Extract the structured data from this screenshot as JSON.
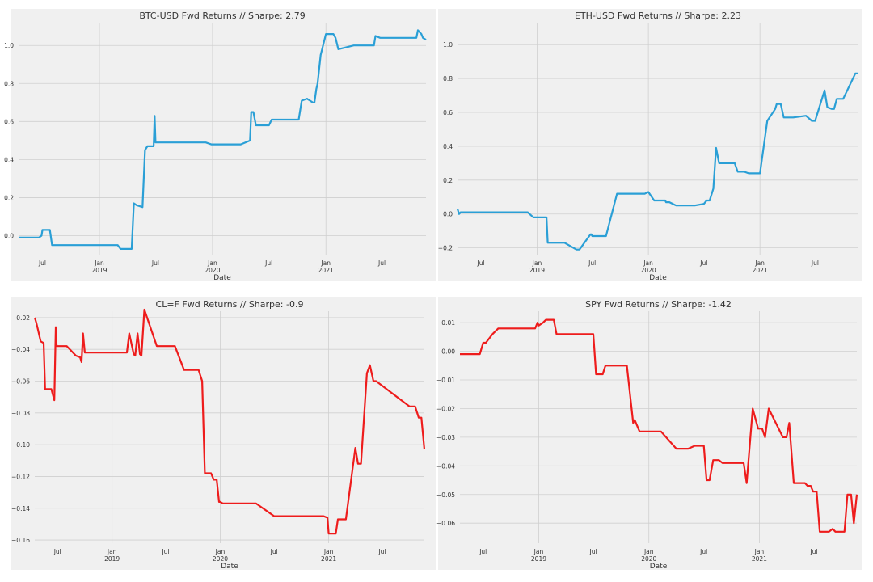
{
  "chart_data": [
    {
      "type": "line",
      "title": "BTC-USD Fwd Returns //  Sharpe: 2.79",
      "xlabel": "Date",
      "ylabel": "",
      "color": "#2a9fd6",
      "xlim": [
        "2018-04-15",
        "2021-11-20"
      ],
      "ylim": [
        -0.1,
        1.12
      ],
      "yticks": [
        "0.0",
        "0.2",
        "0.4",
        "0.6",
        "0.8",
        "1.0"
      ],
      "ytick_values": [
        0.0,
        0.2,
        0.4,
        0.6,
        0.8,
        1.0
      ],
      "xticks": [
        {
          "date": "2018-07-01",
          "label": "Jul",
          "year": ""
        },
        {
          "date": "2019-01-01",
          "label": "Jan",
          "year": "2019"
        },
        {
          "date": "2019-07-01",
          "label": "Jul",
          "year": ""
        },
        {
          "date": "2020-01-01",
          "label": "Jan",
          "year": "2020"
        },
        {
          "date": "2020-07-01",
          "label": "Jul",
          "year": ""
        },
        {
          "date": "2021-01-01",
          "label": "Jan",
          "year": "2021"
        },
        {
          "date": "2021-07-01",
          "label": "Jul",
          "year": ""
        }
      ],
      "x": [
        "2018-04-15",
        "2018-05-20",
        "2018-06-01",
        "2018-06-10",
        "2018-06-20",
        "2018-06-28",
        "2018-07-01",
        "2018-07-15",
        "2018-07-25",
        "2018-08-01",
        "2018-08-05",
        "2018-12-01",
        "2019-03-01",
        "2019-03-10",
        "2019-04-15",
        "2019-04-22",
        "2019-05-01",
        "2019-05-20",
        "2019-05-28",
        "2019-06-05",
        "2019-06-10",
        "2019-06-25",
        "2019-06-28",
        "2019-07-01",
        "2019-07-10",
        "2019-10-01",
        "2019-12-10",
        "2019-12-28",
        "2020-01-01",
        "2020-01-10",
        "2020-04-01",
        "2020-05-01",
        "2020-05-05",
        "2020-05-10",
        "2020-05-12",
        "2020-05-20",
        "2020-06-01",
        "2020-07-01",
        "2020-07-10",
        "2020-10-01",
        "2020-10-05",
        "2020-10-15",
        "2020-11-01",
        "2020-11-20",
        "2020-11-25",
        "2020-12-01",
        "2020-12-05",
        "2020-12-15",
        "2021-01-01",
        "2021-01-25",
        "2021-02-01",
        "2021-02-10",
        "2021-04-01",
        "2021-06-01",
        "2021-06-05",
        "2021-06-10",
        "2021-06-25",
        "2021-07-01",
        "2021-07-10",
        "2021-08-01",
        "2021-10-15",
        "2021-10-20",
        "2021-10-25",
        "2021-11-05",
        "2021-11-10",
        "2021-11-20"
      ],
      "y": [
        -0.01,
        -0.01,
        -0.01,
        -0.01,
        -0.01,
        0.0,
        0.03,
        0.03,
        0.03,
        -0.05,
        -0.05,
        -0.05,
        -0.05,
        -0.07,
        -0.07,
        0.17,
        0.16,
        0.15,
        0.45,
        0.47,
        0.47,
        0.47,
        0.63,
        0.49,
        0.49,
        0.49,
        0.49,
        0.48,
        0.48,
        0.48,
        0.48,
        0.5,
        0.65,
        0.65,
        0.65,
        0.58,
        0.58,
        0.58,
        0.61,
        0.61,
        0.61,
        0.71,
        0.72,
        0.7,
        0.7,
        0.77,
        0.8,
        0.95,
        1.06,
        1.06,
        1.04,
        0.98,
        1.0,
        1.0,
        1.0,
        1.05,
        1.04,
        1.04,
        1.04,
        1.04,
        1.04,
        1.04,
        1.08,
        1.06,
        1.04,
        1.03
      ]
    },
    {
      "type": "line",
      "title": "ETH-USD Fwd Returns //  Sharpe: 2.23",
      "xlabel": "Date",
      "ylabel": "",
      "color": "#2a9fd6",
      "xlim": [
        "2018-04-15",
        "2021-11-20"
      ],
      "ylim": [
        -0.24,
        1.13
      ],
      "yticks": [
        "−0.2",
        "0.0",
        "0.2",
        "0.4",
        "0.6",
        "0.8",
        "1.0"
      ],
      "ytick_values": [
        -0.2,
        0.0,
        0.2,
        0.4,
        0.6,
        0.8,
        1.0
      ],
      "xticks": [
        {
          "date": "2018-07-01",
          "label": "Jul",
          "year": ""
        },
        {
          "date": "2019-01-01",
          "label": "Jan",
          "year": "2019"
        },
        {
          "date": "2019-07-01",
          "label": "Jul",
          "year": ""
        },
        {
          "date": "2020-01-01",
          "label": "Jan",
          "year": "2020"
        },
        {
          "date": "2020-07-01",
          "label": "Jul",
          "year": ""
        },
        {
          "date": "2021-01-01",
          "label": "Jan",
          "year": "2021"
        },
        {
          "date": "2021-07-01",
          "label": "Jul",
          "year": ""
        }
      ],
      "x": [
        "2018-04-15",
        "2018-04-20",
        "2018-04-25",
        "2018-11-25",
        "2018-12-01",
        "2018-12-20",
        "2018-12-28",
        "2019-02-01",
        "2019-02-05",
        "2019-03-10",
        "2019-03-20",
        "2019-04-01",
        "2019-05-10",
        "2019-05-20",
        "2019-06-25",
        "2019-06-28",
        "2019-07-01",
        "2019-08-15",
        "2019-09-20",
        "2019-10-01",
        "2019-12-20",
        "2020-01-01",
        "2020-01-20",
        "2020-02-10",
        "2020-02-15",
        "2020-02-25",
        "2020-02-28",
        "2020-03-10",
        "2020-04-01",
        "2020-04-15",
        "2020-04-22",
        "2020-05-10",
        "2020-06-01",
        "2020-07-01",
        "2020-07-10",
        "2020-07-20",
        "2020-08-01",
        "2020-08-10",
        "2020-08-20",
        "2020-09-25",
        "2020-10-01",
        "2020-10-10",
        "2020-10-20",
        "2020-11-10",
        "2020-11-25",
        "2020-12-10",
        "2021-01-01",
        "2021-01-25",
        "2021-02-20",
        "2021-02-25",
        "2021-03-01",
        "2021-03-10",
        "2021-03-20",
        "2021-04-01",
        "2021-04-20",
        "2021-06-01",
        "2021-06-20",
        "2021-07-01",
        "2021-08-01",
        "2021-08-10",
        "2021-08-25",
        "2021-09-01",
        "2021-09-10",
        "2021-10-01",
        "2021-11-10",
        "2021-11-20"
      ],
      "y": [
        0.03,
        0.0,
        0.01,
        0.01,
        0.01,
        -0.02,
        -0.02,
        -0.02,
        -0.17,
        -0.17,
        -0.17,
        -0.17,
        -0.21,
        -0.21,
        -0.12,
        -0.12,
        -0.13,
        -0.13,
        0.12,
        0.12,
        0.12,
        0.13,
        0.08,
        0.08,
        0.08,
        0.08,
        0.07,
        0.07,
        0.05,
        0.05,
        0.05,
        0.05,
        0.05,
        0.06,
        0.08,
        0.08,
        0.15,
        0.39,
        0.3,
        0.3,
        0.3,
        0.3,
        0.25,
        0.25,
        0.24,
        0.24,
        0.24,
        0.55,
        0.62,
        0.65,
        0.65,
        0.65,
        0.57,
        0.57,
        0.57,
        0.58,
        0.55,
        0.55,
        0.73,
        0.63,
        0.62,
        0.62,
        0.68,
        0.68,
        0.83,
        0.83
      ]
    },
    {
      "type": "line",
      "title": "CL=F Fwd Returns //  Sharpe: -0.9",
      "xlabel": "Date",
      "ylabel": "",
      "color": "#ee1c1c",
      "xlim": [
        "2018-04-15",
        "2021-11-20"
      ],
      "ylim": [
        -0.162,
        -0.016
      ],
      "yticks": [
        "−0.16",
        "−0.14",
        "−0.12",
        "−0.10",
        "−0.08",
        "−0.06",
        "−0.04",
        "−0.02"
      ],
      "ytick_values": [
        -0.16,
        -0.14,
        -0.12,
        -0.1,
        -0.08,
        -0.06,
        -0.04,
        -0.02
      ],
      "xticks": [
        {
          "date": "2018-07-01",
          "label": "Jul",
          "year": ""
        },
        {
          "date": "2019-01-01",
          "label": "Jan",
          "year": "2019"
        },
        {
          "date": "2019-07-01",
          "label": "Jul",
          "year": ""
        },
        {
          "date": "2020-01-01",
          "label": "Jan",
          "year": "2020"
        },
        {
          "date": "2020-07-01",
          "label": "Jul",
          "year": ""
        },
        {
          "date": "2021-01-01",
          "label": "Jan",
          "year": "2021"
        },
        {
          "date": "2021-07-01",
          "label": "Jul",
          "year": ""
        }
      ],
      "x": [
        "2018-04-15",
        "2018-04-20",
        "2018-04-25",
        "2018-05-05",
        "2018-05-15",
        "2018-05-20",
        "2018-06-01",
        "2018-06-10",
        "2018-06-20",
        "2018-06-25",
        "2018-06-28",
        "2018-07-01",
        "2018-07-10",
        "2018-08-01",
        "2018-09-01",
        "2018-09-15",
        "2018-09-20",
        "2018-09-25",
        "2018-10-01",
        "2019-01-01",
        "2019-02-15",
        "2019-02-20",
        "2019-02-28",
        "2019-03-15",
        "2019-03-20",
        "2019-03-28",
        "2019-04-05",
        "2019-04-10",
        "2019-04-20",
        "2019-06-01",
        "2019-06-10",
        "2019-08-01",
        "2019-09-01",
        "2019-09-10",
        "2019-09-25",
        "2019-10-10",
        "2019-10-20",
        "2019-11-01",
        "2019-11-10",
        "2019-11-25",
        "2019-12-01",
        "2019-12-10",
        "2019-12-20",
        "2019-12-28",
        "2020-01-01",
        "2020-01-10",
        "2020-05-01",
        "2020-07-01",
        "2020-08-01",
        "2020-08-10",
        "2020-08-20",
        "2020-12-01",
        "2020-12-15",
        "2020-12-28",
        "2021-01-01",
        "2021-01-10",
        "2021-01-15",
        "2021-01-25",
        "2021-02-01",
        "2021-02-10",
        "2021-02-20",
        "2021-02-28",
        "2021-04-01",
        "2021-04-10",
        "2021-04-20",
        "2021-05-10",
        "2021-05-20",
        "2021-06-01",
        "2021-06-10",
        "2021-10-01",
        "2021-10-10",
        "2021-10-20",
        "2021-11-01",
        "2021-11-10",
        "2021-11-20"
      ],
      "y": [
        -0.02,
        -0.023,
        -0.027,
        -0.035,
        -0.036,
        -0.065,
        -0.065,
        -0.065,
        -0.072,
        -0.026,
        -0.038,
        -0.038,
        -0.038,
        -0.038,
        -0.044,
        -0.045,
        -0.048,
        -0.03,
        -0.042,
        -0.042,
        -0.042,
        -0.042,
        -0.03,
        -0.043,
        -0.044,
        -0.03,
        -0.043,
        -0.044,
        -0.015,
        -0.038,
        -0.038,
        -0.038,
        -0.053,
        -0.053,
        -0.053,
        -0.053,
        -0.053,
        -0.06,
        -0.118,
        -0.118,
        -0.118,
        -0.122,
        -0.122,
        -0.136,
        -0.136,
        -0.137,
        -0.137,
        -0.145,
        -0.145,
        -0.145,
        -0.145,
        -0.145,
        -0.145,
        -0.146,
        -0.156,
        -0.156,
        -0.156,
        -0.156,
        -0.147,
        -0.147,
        -0.147,
        -0.147,
        -0.102,
        -0.112,
        -0.112,
        -0.055,
        -0.05,
        -0.06,
        -0.06,
        -0.076,
        -0.076,
        -0.076,
        -0.083,
        -0.083,
        -0.103
      ]
    },
    {
      "type": "line",
      "title": "SPY Fwd Returns //  Sharpe: -1.42",
      "xlabel": "Date",
      "ylabel": "",
      "color": "#ee1c1c",
      "xlim": [
        "2018-04-15",
        "2021-11-20"
      ],
      "ylim": [
        -0.067,
        0.014
      ],
      "yticks": [
        "−0.06",
        "−0.05",
        "−0.04",
        "−0.03",
        "−0.02",
        "−0.01",
        "0.00",
        "0.01"
      ],
      "ytick_values": [
        -0.06,
        -0.05,
        -0.04,
        -0.03,
        -0.02,
        -0.01,
        0.0,
        0.01
      ],
      "xticks": [
        {
          "date": "2018-07-01",
          "label": "Jul",
          "year": ""
        },
        {
          "date": "2019-01-01",
          "label": "Jan",
          "year": "2019"
        },
        {
          "date": "2019-07-01",
          "label": "Jul",
          "year": ""
        },
        {
          "date": "2020-01-01",
          "label": "Jan",
          "year": "2020"
        },
        {
          "date": "2020-07-01",
          "label": "Jul",
          "year": ""
        },
        {
          "date": "2021-01-01",
          "label": "Jan",
          "year": "2021"
        },
        {
          "date": "2021-07-01",
          "label": "Jul",
          "year": ""
        }
      ],
      "x": [
        "2018-04-15",
        "2018-05-20",
        "2018-06-01",
        "2018-06-20",
        "2018-07-01",
        "2018-07-10",
        "2018-08-01",
        "2018-08-20",
        "2018-09-01",
        "2018-09-10",
        "2018-09-20",
        "2018-10-01",
        "2018-10-05",
        "2018-12-20",
        "2018-12-28",
        "2019-01-01",
        "2019-01-15",
        "2019-01-25",
        "2019-02-01",
        "2019-02-20",
        "2019-03-01",
        "2019-03-10",
        "2019-03-20",
        "2019-03-25",
        "2019-04-01",
        "2019-04-05",
        "2019-05-01",
        "2019-06-01",
        "2019-06-10",
        "2019-07-01",
        "2019-07-10",
        "2019-08-01",
        "2019-08-10",
        "2019-10-10",
        "2019-10-20",
        "2019-11-10",
        "2019-11-15",
        "2019-12-01",
        "2019-12-10",
        "2020-01-01",
        "2020-02-10",
        "2020-04-01",
        "2020-05-01",
        "2020-05-10",
        "2020-06-01",
        "2020-06-10",
        "2020-06-15",
        "2020-06-20",
        "2020-06-25",
        "2020-07-01",
        "2020-07-10",
        "2020-07-20",
        "2020-08-01",
        "2020-08-10",
        "2020-08-20",
        "2020-09-01",
        "2020-09-10",
        "2020-10-01",
        "2020-10-10",
        "2020-11-10",
        "2020-11-20",
        "2020-12-10",
        "2020-12-28",
        "2021-01-01",
        "2021-01-10",
        "2021-01-20",
        "2021-02-01",
        "2021-03-20",
        "2021-04-01",
        "2021-04-10",
        "2021-04-25",
        "2021-05-01",
        "2021-05-10",
        "2021-06-01",
        "2021-06-10",
        "2021-06-20",
        "2021-06-28",
        "2021-07-10",
        "2021-07-20",
        "2021-08-20",
        "2021-09-01",
        "2021-09-10",
        "2021-10-10",
        "2021-10-20",
        "2021-11-01",
        "2021-11-10",
        "2021-11-20"
      ],
      "y": [
        -0.001,
        -0.001,
        -0.001,
        -0.001,
        0.003,
        0.003,
        0.006,
        0.008,
        0.008,
        0.008,
        0.008,
        0.008,
        0.008,
        0.008,
        0.01,
        0.009,
        0.01,
        0.011,
        0.011,
        0.011,
        0.006,
        0.006,
        0.006,
        0.006,
        0.006,
        0.006,
        0.006,
        0.006,
        0.006,
        0.006,
        -0.008,
        -0.008,
        -0.005,
        -0.005,
        -0.005,
        -0.025,
        -0.024,
        -0.028,
        -0.028,
        -0.028,
        -0.028,
        -0.034,
        -0.034,
        -0.034,
        -0.033,
        -0.033,
        -0.033,
        -0.033,
        -0.033,
        -0.033,
        -0.045,
        -0.045,
        -0.038,
        -0.038,
        -0.038,
        -0.039,
        -0.039,
        -0.039,
        -0.039,
        -0.039,
        -0.046,
        -0.02,
        -0.027,
        -0.027,
        -0.027,
        -0.03,
        -0.02,
        -0.03,
        -0.03,
        -0.025,
        -0.046,
        -0.046,
        -0.046,
        -0.046,
        -0.047,
        -0.047,
        -0.049,
        -0.049,
        -0.063,
        -0.063,
        -0.062,
        -0.063,
        -0.063,
        -0.05,
        -0.05,
        -0.06,
        -0.05
      ]
    }
  ]
}
